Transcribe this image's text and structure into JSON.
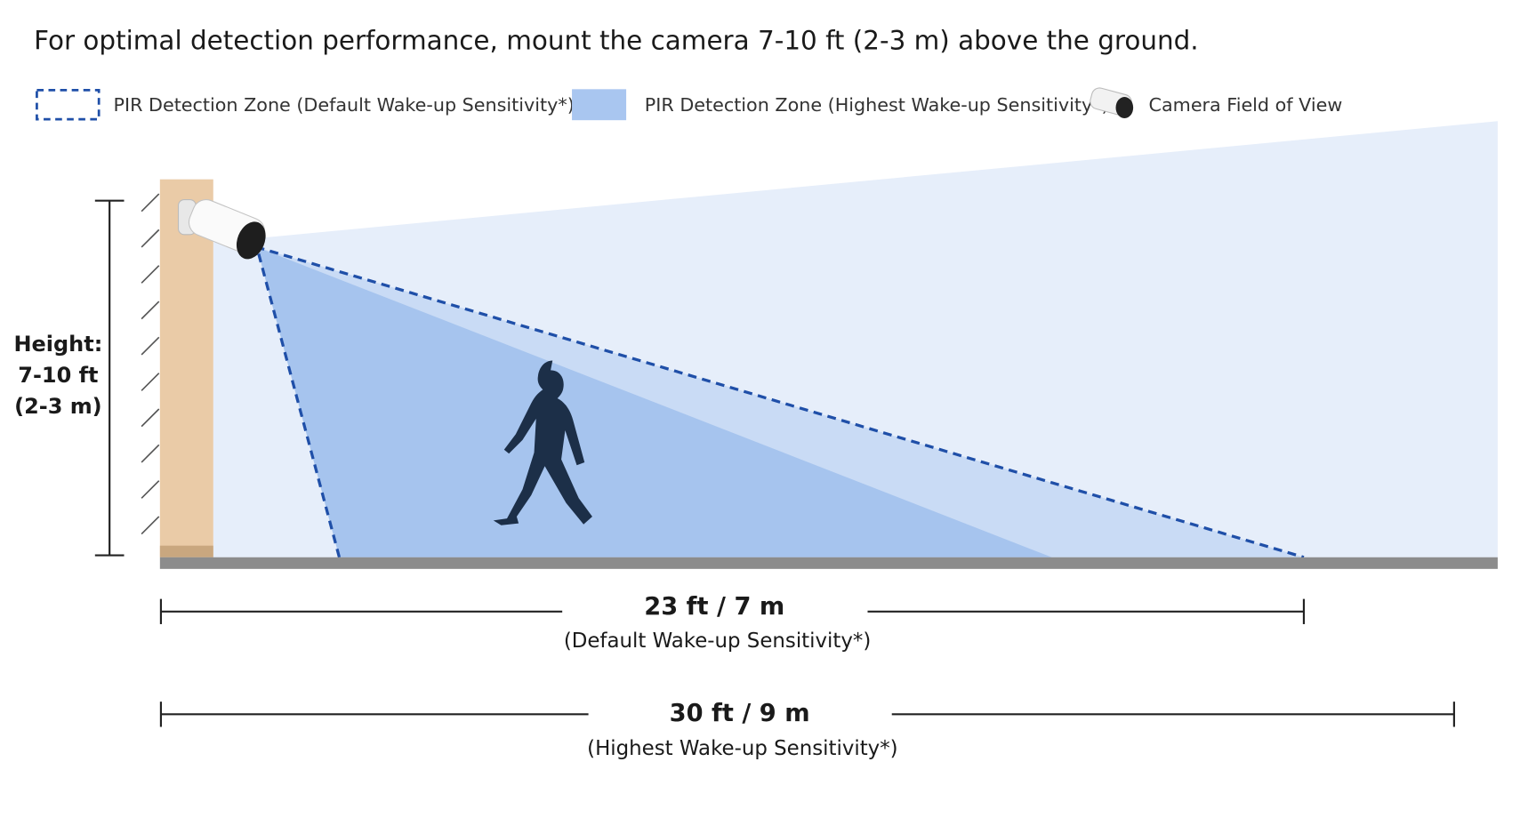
{
  "header": {
    "title": "For optimal detection performance, mount the camera 7-10 ft (2-3 m) above the ground."
  },
  "legend": [
    {
      "label": "PIR Detection Zone (Default Wake-up Sensitivity*)"
    },
    {
      "label": "PIR Detection Zone (Highest Wake-up Sensitivity*)"
    },
    {
      "label": "Camera Field of View"
    }
  ],
  "height_label": [
    "Height:",
    "7-10 ft",
    "(2-3 m)"
  ],
  "measurements": [
    {
      "distance": "23 ft / 7 m",
      "note": "(Default Wake-up Sensitivity*)"
    },
    {
      "distance": "30 ft / 9 m",
      "note": "(Highest Wake-up Sensitivity*)"
    }
  ]
}
